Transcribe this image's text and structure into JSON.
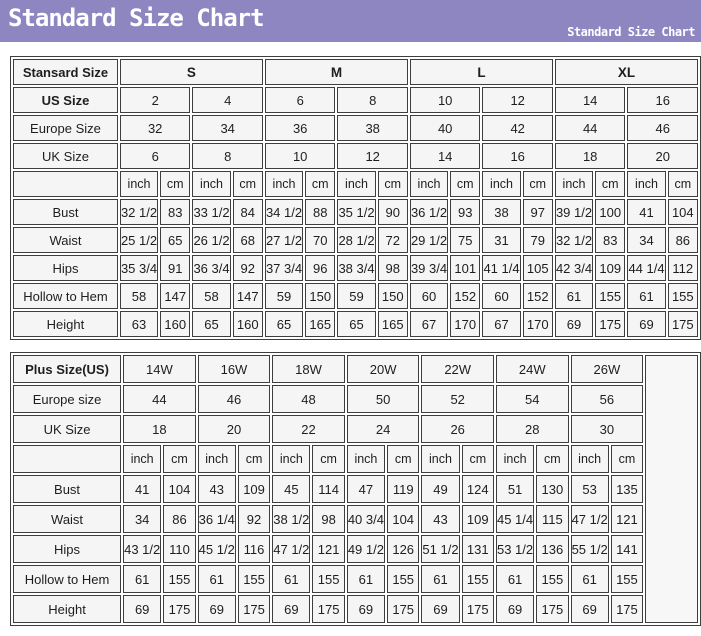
{
  "banner": {
    "title": "Standard Size Chart",
    "subtitle": "Standard Size Chart"
  },
  "colors": {
    "banner_bg": "#8d86c1",
    "banner_text": "#ffffff",
    "cell_bg": "#f5f5f5",
    "border": "#3e3e3e",
    "page_bg": "#ffffff"
  },
  "chart_data": [
    {
      "type": "table",
      "name": "standard-size-table",
      "trailing_empty": false,
      "rows": [
        {
          "label": "Stansard Size",
          "label_bold": true,
          "span": 4,
          "cells_bold": true,
          "cells": [
            "S",
            "M",
            "L",
            "XL"
          ]
        },
        {
          "label": "US Size",
          "label_bold": true,
          "span": 2,
          "cells": [
            "2",
            "4",
            "6",
            "8",
            "10",
            "12",
            "14",
            "16"
          ]
        },
        {
          "label": "Europe Size",
          "label_bold": false,
          "span": 2,
          "cells": [
            "32",
            "34",
            "36",
            "38",
            "40",
            "42",
            "44",
            "46"
          ]
        },
        {
          "label": "UK Size",
          "label_bold": false,
          "span": 2,
          "cells": [
            "6",
            "8",
            "10",
            "12",
            "14",
            "16",
            "18",
            "20"
          ]
        },
        {
          "label": "",
          "label_bold": false,
          "span": 1,
          "unit_row": true,
          "cells": [
            "inch",
            "cm",
            "inch",
            "cm",
            "inch",
            "cm",
            "inch",
            "cm",
            "inch",
            "cm",
            "inch",
            "cm",
            "inch",
            "cm",
            "inch",
            "cm"
          ]
        },
        {
          "label": "Bust",
          "label_bold": false,
          "span": 1,
          "cells": [
            "32 1/2",
            "83",
            "33 1/2",
            "84",
            "34 1/2",
            "88",
            "35 1/2",
            "90",
            "36 1/2",
            "93",
            "38",
            "97",
            "39 1/2",
            "100",
            "41",
            "104"
          ]
        },
        {
          "label": "Waist",
          "label_bold": false,
          "span": 1,
          "cells": [
            "25 1/2",
            "65",
            "26 1/2",
            "68",
            "27 1/2",
            "70",
            "28 1/2",
            "72",
            "29 1/2",
            "75",
            "31",
            "79",
            "32 1/2",
            "83",
            "34",
            "86"
          ]
        },
        {
          "label": "Hips",
          "label_bold": false,
          "span": 1,
          "cells": [
            "35 3/4",
            "91",
            "36 3/4",
            "92",
            "37 3/4",
            "96",
            "38 3/4",
            "98",
            "39 3/4",
            "101",
            "41 1/4",
            "105",
            "42 3/4",
            "109",
            "44 1/4",
            "112"
          ]
        },
        {
          "label": "Hollow to Hem",
          "label_bold": false,
          "span": 1,
          "cells": [
            "58",
            "147",
            "58",
            "147",
            "59",
            "150",
            "59",
            "150",
            "60",
            "152",
            "60",
            "152",
            "61",
            "155",
            "61",
            "155"
          ]
        },
        {
          "label": "Height",
          "label_bold": false,
          "span": 1,
          "cells": [
            "63",
            "160",
            "65",
            "160",
            "65",
            "165",
            "65",
            "165",
            "67",
            "170",
            "67",
            "170",
            "69",
            "175",
            "69",
            "175"
          ]
        }
      ]
    },
    {
      "type": "table",
      "name": "plus-size-table",
      "trailing_empty": true,
      "rows": [
        {
          "label": "Plus Size(US)",
          "label_bold": true,
          "span": 2,
          "cells": [
            "14W",
            "16W",
            "18W",
            "20W",
            "22W",
            "24W",
            "26W"
          ]
        },
        {
          "label": "Europe size",
          "label_bold": false,
          "span": 2,
          "cells": [
            "44",
            "46",
            "48",
            "50",
            "52",
            "54",
            "56"
          ]
        },
        {
          "label": "UK Size",
          "label_bold": false,
          "span": 2,
          "cells": [
            "18",
            "20",
            "22",
            "24",
            "26",
            "28",
            "30"
          ]
        },
        {
          "label": "",
          "label_bold": false,
          "span": 1,
          "unit_row": true,
          "cells": [
            "inch",
            "cm",
            "inch",
            "cm",
            "inch",
            "cm",
            "inch",
            "cm",
            "inch",
            "cm",
            "inch",
            "cm",
            "inch",
            "cm"
          ]
        },
        {
          "label": "Bust",
          "label_bold": false,
          "span": 1,
          "cells": [
            "41",
            "104",
            "43",
            "109",
            "45",
            "114",
            "47",
            "119",
            "49",
            "124",
            "51",
            "130",
            "53",
            "135"
          ]
        },
        {
          "label": "Waist",
          "label_bold": false,
          "span": 1,
          "cells": [
            "34",
            "86",
            "36 1/4",
            "92",
            "38 1/2",
            "98",
            "40 3/4",
            "104",
            "43",
            "109",
            "45 1/4",
            "115",
            "47 1/2",
            "121"
          ]
        },
        {
          "label": "Hips",
          "label_bold": false,
          "span": 1,
          "cells": [
            "43 1/2",
            "110",
            "45 1/2",
            "116",
            "47 1/2",
            "121",
            "49 1/2",
            "126",
            "51 1/2",
            "131",
            "53 1/2",
            "136",
            "55 1/2",
            "141"
          ]
        },
        {
          "label": "Hollow to Hem",
          "label_bold": false,
          "span": 1,
          "cells": [
            "61",
            "155",
            "61",
            "155",
            "61",
            "155",
            "61",
            "155",
            "61",
            "155",
            "61",
            "155",
            "61",
            "155"
          ]
        },
        {
          "label": "Height",
          "label_bold": false,
          "span": 1,
          "cells": [
            "69",
            "175",
            "69",
            "175",
            "69",
            "175",
            "69",
            "175",
            "69",
            "175",
            "69",
            "175",
            "69",
            "175"
          ]
        }
      ]
    }
  ]
}
